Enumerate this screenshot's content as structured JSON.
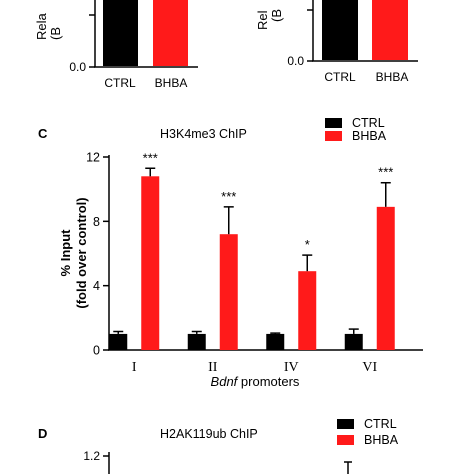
{
  "top_panels": {
    "left": {
      "ylabel_partial": "Rela",
      "ylabel_partial2": "(B",
      "ytick": "0.0",
      "categories": [
        "CTRL",
        "BHBA"
      ]
    },
    "right": {
      "ylabel_partial": "Rel",
      "ylabel_partial2": "(B",
      "ytick": "0.0",
      "categories": [
        "CTRL",
        "BHBA"
      ]
    }
  },
  "panel_c": {
    "letter": "C",
    "title": "H3K4me3 ChIP",
    "legend": [
      "CTRL",
      "BHBA"
    ]
  },
  "panel_d": {
    "letter": "D",
    "title": "H2AK119ub ChIP",
    "legend": [
      "CTRL",
      "BHBA"
    ],
    "ytick_top": "1.2"
  },
  "chart_data": [
    {
      "type": "bar",
      "title": "H3K4me3 ChIP",
      "xlabel_italic": "Bdnf",
      "xlabel_rest": " promoters",
      "ylabel_line1": "% Input",
      "ylabel_line2": "(fold over control)",
      "categories": [
        "I",
        "II",
        "IV",
        "VI"
      ],
      "yticks": [
        "0",
        "4",
        "8",
        "12"
      ],
      "ylim": [
        0,
        12
      ],
      "series": [
        {
          "name": "CTRL",
          "color": "#000000",
          "values": [
            1.0,
            1.0,
            1.0,
            1.0
          ],
          "errors": [
            0.15,
            0.15,
            0.05,
            0.3
          ]
        },
        {
          "name": "BHBA",
          "color": "#ff1a1a",
          "values": [
            10.8,
            7.2,
            4.9,
            8.9
          ],
          "errors": [
            0.5,
            1.7,
            1.0,
            1.5
          ]
        }
      ],
      "significance": [
        "***",
        "***",
        "*",
        "***"
      ],
      "legend_position": "top-right"
    }
  ]
}
